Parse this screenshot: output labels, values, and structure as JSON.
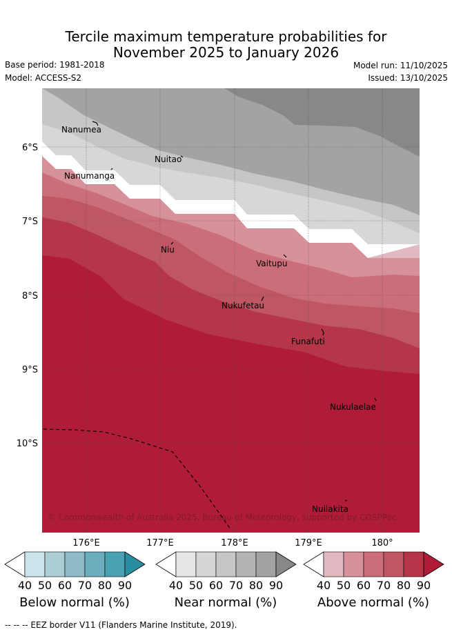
{
  "header": {
    "title_line1": "Tercile maximum temperature probabilities for",
    "title_line2": "November 2025 to January 2026",
    "base_period": "Base period: 1981-2018",
    "model": "Model: ACCESS-S2",
    "model_run": "Model run: 11/10/2025",
    "issued": "Issued: 13/10/2025"
  },
  "map": {
    "lat_labels": [
      "6°S",
      "7°S",
      "8°S",
      "9°S",
      "10°S"
    ],
    "lon_labels": [
      "176°E",
      "177°E",
      "178°E",
      "179°E",
      "180°"
    ],
    "places": [
      "Nanumea",
      "Nuitao",
      "Nanumanga",
      "Niu",
      "Vaitupu",
      "Nukufetau",
      "Funafuti",
      "Nukulaelae",
      "Nuilakita"
    ],
    "copyright": "© Commonwealth of Australia 2025, Bureau of Meteorology, supported by COSPPac"
  },
  "legend": {
    "ticks": [
      "40",
      "50",
      "60",
      "70",
      "80",
      "90"
    ],
    "below_title": "Below normal (%)",
    "near_title": "Near normal (%)",
    "above_title": "Above normal (%)",
    "below_colors": [
      "#ffffff",
      "#cbe3ea",
      "#abcdd3",
      "#8dbac6",
      "#6cadbd",
      "#4aa1b1",
      "#2b8da0"
    ],
    "near_colors": [
      "#ffffff",
      "#e6e6e6",
      "#d6d6d6",
      "#c6c6c6",
      "#b4b4b4",
      "#a2a2a2",
      "#888888"
    ],
    "above_colors": [
      "#ffffff",
      "#e2b9c1",
      "#d6919a",
      "#cb6e79",
      "#bf5664",
      "#b53648",
      "#b01c38"
    ]
  },
  "footer": {
    "eez_note": "--  --  -- EEZ border V11 (Flanders Marine Institute, 2019)."
  }
}
